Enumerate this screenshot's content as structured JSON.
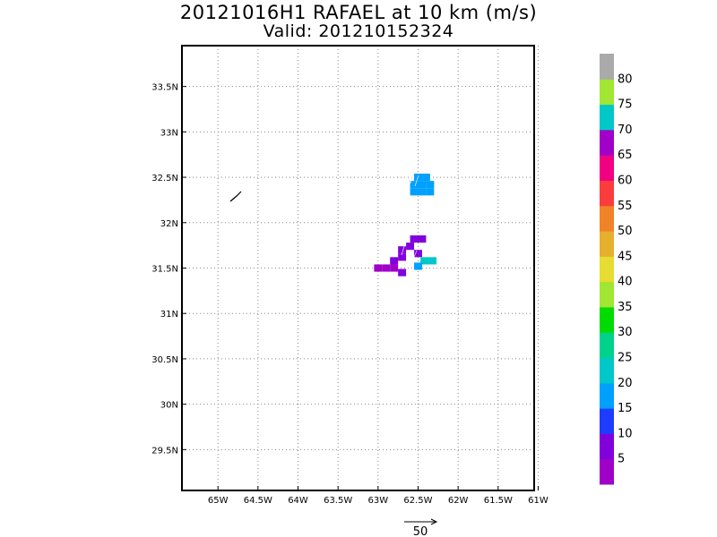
{
  "title": "20121016H1 RAFAEL at 10 km (m/s)",
  "subtitle": "Valid: 201210152324",
  "chart_data": {
    "type": "heatmap",
    "title": "20121016H1 RAFAEL at 10 km (m/s)",
    "subtitle": "Valid: 201210152324",
    "xlim": [
      -65.45,
      -61.05
    ],
    "ylim": [
      29.05,
      33.95
    ],
    "x_ticks": [
      {
        "value": -65,
        "label": "65W"
      },
      {
        "value": -64.5,
        "label": "64.5W"
      },
      {
        "value": -64,
        "label": "64W"
      },
      {
        "value": -63.5,
        "label": "63.5W"
      },
      {
        "value": -63,
        "label": "63W"
      },
      {
        "value": -62.5,
        "label": "62.5W"
      },
      {
        "value": -62,
        "label": "62W"
      },
      {
        "value": -61.5,
        "label": "61.5W"
      },
      {
        "value": -61,
        "label": "61W"
      }
    ],
    "y_ticks": [
      {
        "value": 29.5,
        "label": "29.5N"
      },
      {
        "value": 30,
        "label": "30N"
      },
      {
        "value": 30.5,
        "label": "30.5N"
      },
      {
        "value": 31,
        "label": "31N"
      },
      {
        "value": 31.5,
        "label": "31.5N"
      },
      {
        "value": 32,
        "label": "32N"
      },
      {
        "value": 32.5,
        "label": "32.5N"
      },
      {
        "value": 33,
        "label": "33N"
      },
      {
        "value": 33.5,
        "label": "33.5N"
      }
    ],
    "grid": true,
    "colorbar": {
      "labels": [
        "5",
        "10",
        "15",
        "20",
        "25",
        "30",
        "35",
        "40",
        "45",
        "50",
        "55",
        "60",
        "65",
        "70",
        "75",
        "80"
      ],
      "colors": [
        "#a000c8",
        "#8200dc",
        "#1e3cff",
        "#00a0ff",
        "#00c8c8",
        "#00d28c",
        "#00dc00",
        "#a0e632",
        "#e6dc32",
        "#e6af2d",
        "#f08228",
        "#fa3c3c",
        "#f00082",
        "#a000c8",
        "#00c8c8",
        "#a0e632",
        "#aaaaaa"
      ]
    },
    "cells": [
      {
        "lon": -62.55,
        "lat": 32.42,
        "value": 18
      },
      {
        "lon": -62.45,
        "lat": 32.42,
        "value": 18
      },
      {
        "lon": -62.35,
        "lat": 32.42,
        "value": 18
      },
      {
        "lon": -62.55,
        "lat": 32.34,
        "value": 18
      },
      {
        "lon": -62.45,
        "lat": 32.34,
        "value": 18
      },
      {
        "lon": -62.35,
        "lat": 32.34,
        "value": 18
      },
      {
        "lon": -62.5,
        "lat": 32.5,
        "value": 18
      },
      {
        "lon": -62.4,
        "lat": 32.5,
        "value": 18
      },
      {
        "lon": -62.45,
        "lat": 31.82,
        "value": 8
      },
      {
        "lon": -62.55,
        "lat": 31.82,
        "value": 8
      },
      {
        "lon": -62.6,
        "lat": 31.74,
        "value": 8
      },
      {
        "lon": -62.7,
        "lat": 31.7,
        "value": 8
      },
      {
        "lon": -62.7,
        "lat": 31.62,
        "value": 8
      },
      {
        "lon": -62.5,
        "lat": 31.66,
        "value": 8
      },
      {
        "lon": -62.8,
        "lat": 31.58,
        "value": 8
      },
      {
        "lon": -62.8,
        "lat": 31.5,
        "value": 3
      },
      {
        "lon": -62.9,
        "lat": 31.5,
        "value": 3
      },
      {
        "lon": -63.0,
        "lat": 31.5,
        "value": 3
      },
      {
        "lon": -62.7,
        "lat": 31.45,
        "value": 8
      },
      {
        "lon": -62.42,
        "lat": 31.58,
        "value": 23
      },
      {
        "lon": -62.32,
        "lat": 31.58,
        "value": 23
      },
      {
        "lon": -62.5,
        "lat": 31.52,
        "value": 18
      }
    ],
    "wind_vector_scale": {
      "label": "50"
    }
  }
}
